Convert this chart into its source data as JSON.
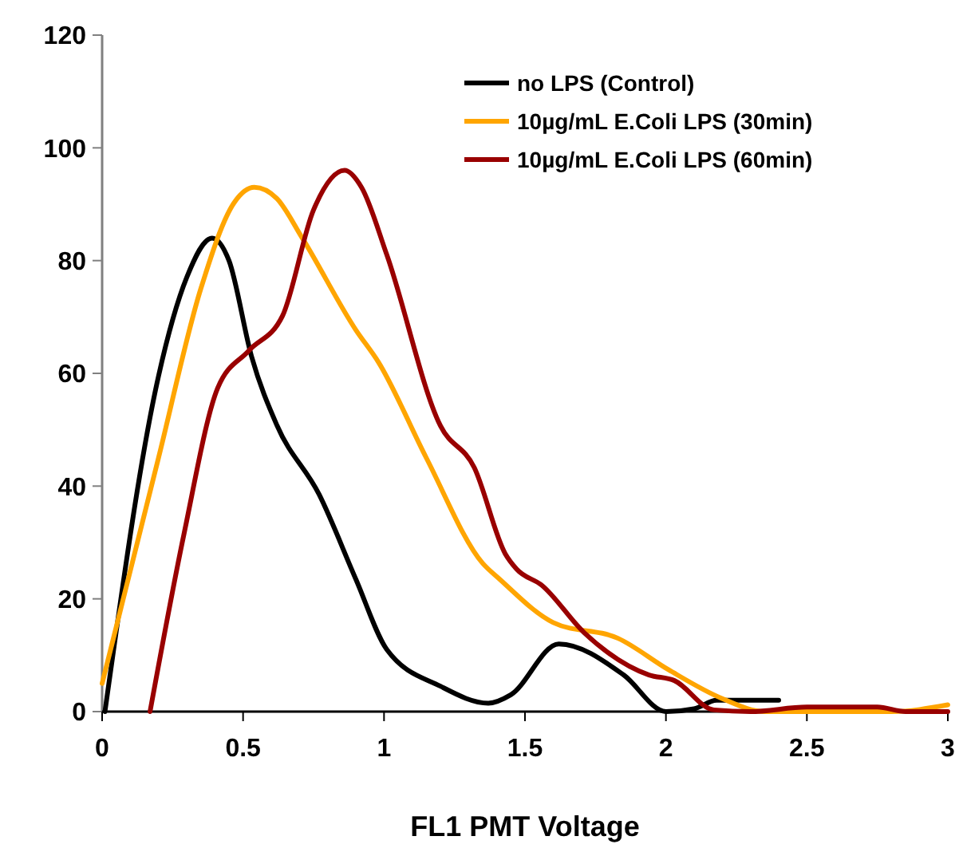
{
  "chart_data": {
    "type": "line",
    "xlabel": "FL1 PMT Voltage",
    "xlim": [
      0,
      3
    ],
    "xticks": [
      0,
      0.5,
      1,
      1.5,
      2,
      2.5,
      3
    ],
    "ylim": [
      0,
      120
    ],
    "yticks": [
      0,
      20,
      40,
      60,
      80,
      100,
      120
    ],
    "grid": false,
    "legend": "top right",
    "marker": "none",
    "line_style": "solid",
    "series": [
      {
        "name": "no LPS (Control)",
        "color": "#000000",
        "x": [
          0.01,
          0.2,
          0.3,
          0.39,
          0.45,
          0.53,
          0.62,
          0.77,
          0.9,
          1.01,
          1.2,
          1.37,
          1.45,
          1.62,
          1.85,
          2.0,
          2.1,
          2.18,
          2.4
        ],
        "values": [
          0,
          59.5,
          77,
          84,
          80,
          63,
          50.8,
          38.5,
          23.5,
          11,
          4.5,
          1.5,
          3,
          12,
          6.5,
          0,
          0.5,
          2,
          2
        ]
      },
      {
        "name": "10µg/mL E.Coli LPS (30min)",
        "color": "#ffa500",
        "x": [
          0,
          0.2,
          0.35,
          0.47,
          0.54,
          0.62,
          0.71,
          0.9,
          0.98,
          1.15,
          1.35,
          1.41,
          1.6,
          1.83,
          2.01,
          2.2,
          2.35,
          2.6,
          2.8,
          3.0
        ],
        "values": [
          5,
          45,
          75,
          90.4,
          93,
          91,
          84,
          67.7,
          62,
          45,
          26.3,
          23.5,
          15.8,
          13,
          7.4,
          2.3,
          0,
          0,
          0,
          1.2
        ]
      },
      {
        "name": "10µg/mL E.Coli LPS (60min)",
        "color": "#990000",
        "x": [
          0.17,
          0.29,
          0.41,
          0.52,
          0.64,
          0.75,
          0.86,
          0.92,
          1.01,
          1.2,
          1.32,
          1.43,
          1.47,
          1.56,
          1.71,
          1.94,
          2.03,
          2.17,
          2.3,
          2.5,
          2.75,
          2.85,
          3.0
        ],
        "values": [
          0,
          31.4,
          57.4,
          64,
          70.2,
          89,
          96,
          93,
          81,
          50.7,
          43.3,
          28,
          25.3,
          22.4,
          14,
          6.5,
          5.5,
          0.3,
          0,
          0.8,
          0.8,
          0,
          0
        ]
      }
    ]
  }
}
